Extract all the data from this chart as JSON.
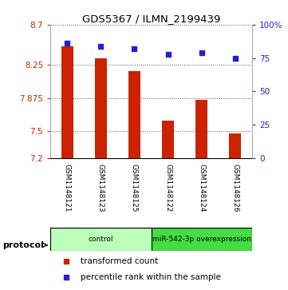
{
  "title": "GDS5367 / ILMN_2199439",
  "samples": [
    "GSM1148121",
    "GSM1148123",
    "GSM1148125",
    "GSM1148122",
    "GSM1148124",
    "GSM1148126"
  ],
  "bar_values": [
    8.46,
    8.32,
    8.18,
    7.62,
    7.85,
    7.48
  ],
  "percentile_values": [
    86,
    84,
    82,
    78,
    79,
    75
  ],
  "ylim_left": [
    7.2,
    8.7
  ],
  "ylim_right": [
    0,
    100
  ],
  "yticks_left": [
    7.2,
    7.5,
    7.875,
    8.25,
    8.7
  ],
  "ytick_labels_left": [
    "7.2",
    "7.5",
    "7.875",
    "8.25",
    "8.7"
  ],
  "yticks_right": [
    0,
    25,
    50,
    75,
    100
  ],
  "ytick_labels_right": [
    "0",
    "25",
    "50",
    "75",
    "100%"
  ],
  "bar_color": "#cc2200",
  "dot_color": "#2222cc",
  "bar_bottom": 7.2,
  "groups": [
    {
      "label": "control",
      "indices": [
        0,
        1,
        2
      ],
      "color": "#bbffbb"
    },
    {
      "label": "miR-542-3p overexpression",
      "indices": [
        3,
        4,
        5
      ],
      "color": "#44dd44"
    }
  ],
  "protocol_label": "protocol",
  "legend_bar_label": "transformed count",
  "legend_dot_label": "percentile rank within the sample",
  "grid_color": "#555555",
  "label_color_left": "#cc2200",
  "label_color_right": "#2222cc",
  "bg_xticklabels": "#cccccc",
  "bar_width": 0.35
}
